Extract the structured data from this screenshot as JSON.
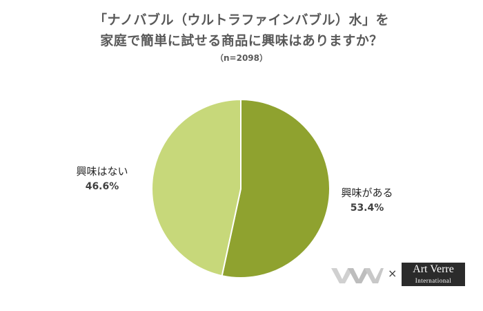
{
  "title_lines": [
    "「ナノバブル（ウルトラファインバブル）水」を",
    "家庭で簡単に試せる商品に興味はありますか？"
  ],
  "subtitle": "（n=2098）",
  "chart_data": {
    "type": "pie",
    "title": "「ナノバブル（ウルトラファインバブル）水」を 家庭で簡単に試せる商品に興味はありますか？",
    "subtitle": "（n=2098）",
    "slices": [
      {
        "label": "興味がある",
        "value": 53.4,
        "display": "53.4%",
        "color": "#8FA22F"
      },
      {
        "label": "興味はない",
        "value": 46.6,
        "display": "46.6%",
        "color": "#C7D87A"
      }
    ],
    "start": "12 o'clock",
    "direction": "clockwise",
    "legend": "none"
  },
  "logos": {
    "times_sign": "×",
    "logo_icon": "wave-w-logo-icon",
    "art_verre_main": "Art Verre",
    "art_verre_sub": "International"
  }
}
